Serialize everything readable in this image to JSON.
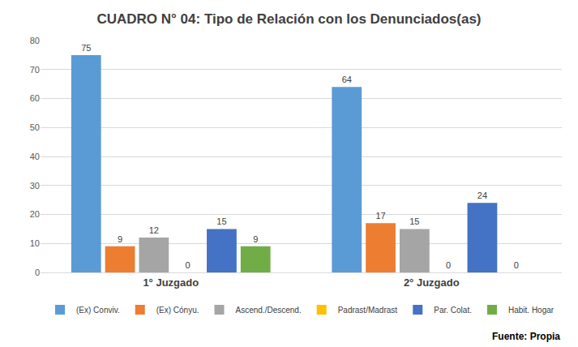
{
  "chart_data": {
    "type": "bar",
    "title": "CUADRO N° 04: Tipo de Relación con los Denunciados(as)",
    "categories": [
      "1° Juzgado",
      "2° Juzgado"
    ],
    "series": [
      {
        "name": "(Ex) Conviv.",
        "color": "#5B9BD5",
        "values": [
          75,
          64
        ]
      },
      {
        "name": "(Ex) Cónyu.",
        "color": "#ED7D31",
        "values": [
          9,
          17
        ]
      },
      {
        "name": "Ascend./Descend.",
        "color": "#A5A5A5",
        "values": [
          12,
          15
        ]
      },
      {
        "name": "Padrast/Madrast",
        "color": "#FFC000",
        "values": [
          0,
          0
        ]
      },
      {
        "name": "Par. Colat.",
        "color": "#4472C4",
        "values": [
          15,
          24
        ]
      },
      {
        "name": "Habit. Hogar",
        "color": "#70AD47",
        "values": [
          9,
          0
        ]
      }
    ],
    "ylim": [
      0,
      80
    ],
    "yticks": [
      0,
      10,
      20,
      30,
      40,
      50,
      60,
      70,
      80
    ],
    "grid": true,
    "data_labels": true,
    "legend": "bottom",
    "annotations": [
      "Fuente: Propia"
    ]
  }
}
